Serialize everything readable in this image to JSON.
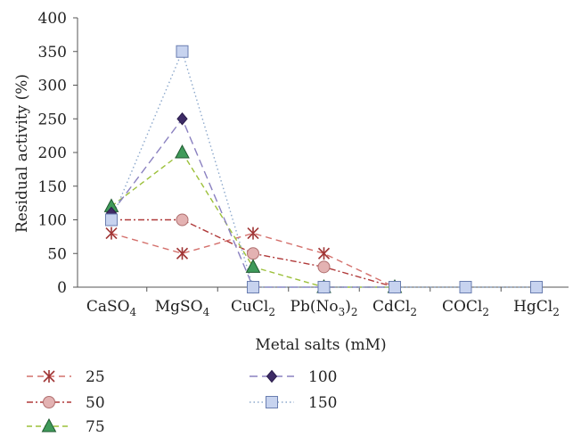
{
  "chart_data": {
    "type": "line",
    "xlabel": "Metal salts (mM)",
    "ylabel": "Residual activity (%)",
    "ylim": [
      0,
      400
    ],
    "yticks": [
      0,
      50,
      100,
      150,
      200,
      250,
      300,
      350,
      400
    ],
    "categories": [
      {
        "base": "CaSO",
        "sub": "4",
        "tail": ""
      },
      {
        "base": "MgSO",
        "sub": "4",
        "tail": ""
      },
      {
        "base": "CuCl",
        "sub": "2",
        "tail": ""
      },
      {
        "base": "Pb(No",
        "sub": "3",
        "tail": ")",
        "sub2": "2"
      },
      {
        "base": "CdCl",
        "sub": "2",
        "tail": ""
      },
      {
        "base": "COCl",
        "sub": "2",
        "tail": ""
      },
      {
        "base": "HgCl",
        "sub": "2",
        "tail": ""
      }
    ],
    "legend_position": "bottom",
    "series": [
      {
        "name": "25",
        "values": [
          80,
          50,
          80,
          50,
          0,
          null,
          null
        ],
        "color": "#d4706c",
        "marker_color": "#a03535",
        "marker": "asterisk",
        "dash": "7,5"
      },
      {
        "name": "50",
        "values": [
          100,
          100,
          50,
          30,
          0,
          null,
          null
        ],
        "color": "#b03a3a",
        "marker_color": "#e3b2b2",
        "marker": "circle",
        "dash": "7,3,2,3"
      },
      {
        "name": "75",
        "values": [
          120,
          200,
          30,
          0,
          0,
          null,
          null
        ],
        "color": "#9cc03a",
        "marker_color": "#3f9a5a",
        "marker": "triangle",
        "dash": "6,4"
      },
      {
        "name": "100",
        "values": [
          110,
          250,
          0,
          0,
          0,
          null,
          null
        ],
        "color": "#8a80c0",
        "marker_color": "#3d2b66",
        "marker": "diamond",
        "dash": "9,5"
      },
      {
        "name": "150",
        "values": [
          100,
          350,
          0,
          0,
          0,
          0,
          0
        ],
        "color": "#8ca8cc",
        "marker_color": "#c7d3ef",
        "marker": "square",
        "dash": "1.5,3"
      }
    ]
  }
}
